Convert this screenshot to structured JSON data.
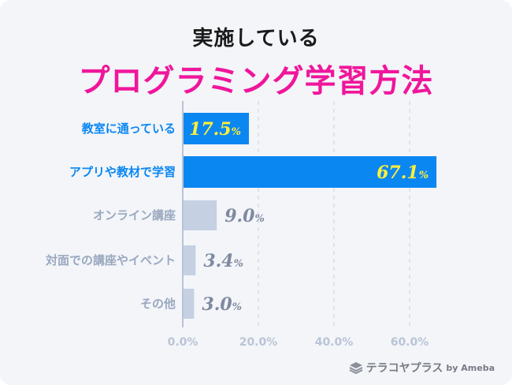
{
  "header": {
    "title_line1": "実施している",
    "title_line2": "プログラミング学習方法"
  },
  "brand": {
    "name": "テラコヤプラス",
    "by": "by Ameba"
  },
  "colors": {
    "highlight_bar": "#0b87f2",
    "muted_bar": "#c5d0e2",
    "highlight_label": "#0b87f2",
    "muted_label": "#9aa8bf",
    "highlight_value": "#ffef3a",
    "muted_value": "#7f8aa0",
    "title_accent": "#f0169b"
  },
  "chart_data": {
    "type": "bar",
    "orientation": "horizontal",
    "categories": [
      "教室に通っている",
      "アプリや教材で学習",
      "オンライン講座",
      "対面での講座やイベント",
      "その他"
    ],
    "values": [
      17.5,
      67.1,
      9.0,
      3.4,
      3.0
    ],
    "value_labels": [
      "17.5%",
      "67.1%",
      "9.0%",
      "3.4%",
      "3.0%"
    ],
    "highlighted": [
      true,
      true,
      false,
      false,
      false
    ],
    "xlim": [
      0,
      80
    ],
    "xticks": [
      0,
      20,
      40,
      60
    ],
    "xtick_labels": [
      "0.0%",
      "20.0%",
      "40.0%",
      "60.0%"
    ],
    "grid": true
  }
}
